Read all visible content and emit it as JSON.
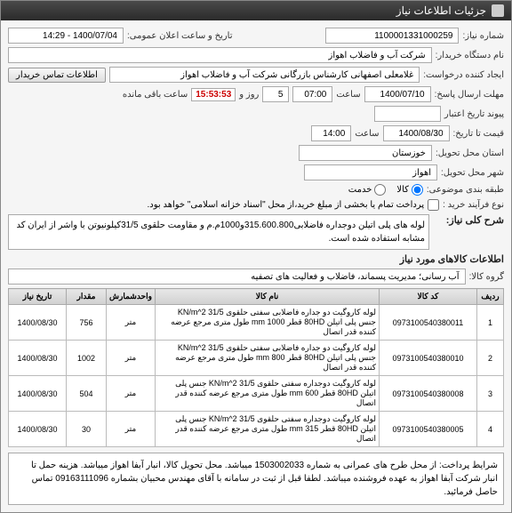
{
  "titlebar": {
    "text": "جزئیات اطلاعات نیاز"
  },
  "fields": {
    "need_no_label": "شماره نیاز:",
    "need_no": "1100001331000259",
    "announce_label": "تاریخ و ساعت اعلان عمومی:",
    "announce_value": "1400/07/04 - 14:29",
    "buyer_label": "نام دستگاه خریدار:",
    "buyer_value": "شرکت آب و فاضلاب اهواز",
    "requester_label": "ایجاد کننده درخواست:",
    "requester_value": "غلامعلی اصفهانی کارشناس بازرگانی شرکت آب و فاضلاب اهواز",
    "contact_btn": "اطلاعات تماس خریدار",
    "deadline_label": "مهلت ارسال پاسخ:",
    "deadline_date": "1400/07/10",
    "time_label": "ساعت",
    "deadline_time": "07:00",
    "days_value": "5",
    "days_suffix": "روز و",
    "countdown": "15:53:53",
    "remain_suffix": "ساعت باقی مانده",
    "history_label": "پیوند تاریخ اعتبار",
    "price_until_label": "قیمت تا تاریخ:",
    "price_until_date": "1400/08/30",
    "price_until_time": "14:00",
    "province_label": "استان محل تحویل:",
    "province_value": "خوزستان",
    "city_label": "شهر محل تحویل:",
    "city_value": "اهواز",
    "multi_vendor_label": "طبقه بندی موضوعی:",
    "radio_goods": "کالا",
    "radio_service": "خدمت",
    "buy_type_label": "نوع فرآیند خرید :",
    "checkbox_note": "پرداخت تمام یا بخشی از مبلغ خرید،از محل \"اسناد خزانه اسلامی\" خواهد بود.",
    "desc_title": "شرح کلی نیاز:",
    "desc_text": "لوله های پلی اتیلن دوجداره فاضلابی315.600.800و1000م.م و مقاومت حلقوی 31/5کیلونیوتن با واشر از ایران کد مشابه استفاده شده است.",
    "goods_title": "اطلاعات کالاهای مورد نیاز",
    "group_label": "گروه کالا:",
    "group_value": "آب رسانی؛ مدیریت پسماند، فاضلاب و فعالیت های تصفیه"
  },
  "table": {
    "headers": [
      "ردیف",
      "کد کالا",
      "نام کالا",
      "واحدشمارش",
      "مقدار",
      "تاریخ نیاز"
    ],
    "rows": [
      [
        "1",
        "0973100540380011",
        "لوله کاروگیت دو جداره فاضلابی سفتی حلقوی KN/m^2 31/5 جنس پلی اتیلن 80HD قطر mm 1000 طول متری مرجع عرضه کننده قدر اتصال",
        "متر",
        "756",
        "1400/08/30"
      ],
      [
        "2",
        "0973100540380010",
        "لوله کاروگیت دو جداره فاضلابی سفتی حلقوی KN/m^2 31/5 جنس پلی اتیلن 80HD قطر mm 800 طول متری مرجع عرضه کننده قدر اتصال",
        "متر",
        "1002",
        "1400/08/30"
      ],
      [
        "3",
        "0973100540380008",
        "لوله کاروگیت دوجداره سفتی حلقوی KN/m^2 31/5 جنس پلی اتیلن 80HD قطر mm 600 طول متری مرجع عرضه کننده قدر اتصال",
        "متر",
        "504",
        "1400/08/30"
      ],
      [
        "4",
        "0973100540380005",
        "لوله کاروگیت دوجداره سفتی حلقوی KN/m^2 31/5 جنس پلی اتیلن 80HD قطر mm 315 طول متری مرجع عرضه کننده قدر اتصال",
        "متر",
        "30",
        "1400/08/30"
      ]
    ]
  },
  "footer": {
    "text": "شرایط پرداخت: از محل طرح های عمرانی به شماره 1503002033 میباشد. محل تحویل کالا، انبار آبفا اهواز میباشد. هزینه حمل تا انبار شرکت آبفا اهواز به عهده فروشنده میباشد. لطفا قبل از ثبت در سامانه با آقای مهندس محبیان بشماره 09163111096 تماس حاصل فرمائید."
  },
  "colors": {
    "titlebar_bg": "#3a3a3a",
    "countdown_color": "#cc0000"
  }
}
